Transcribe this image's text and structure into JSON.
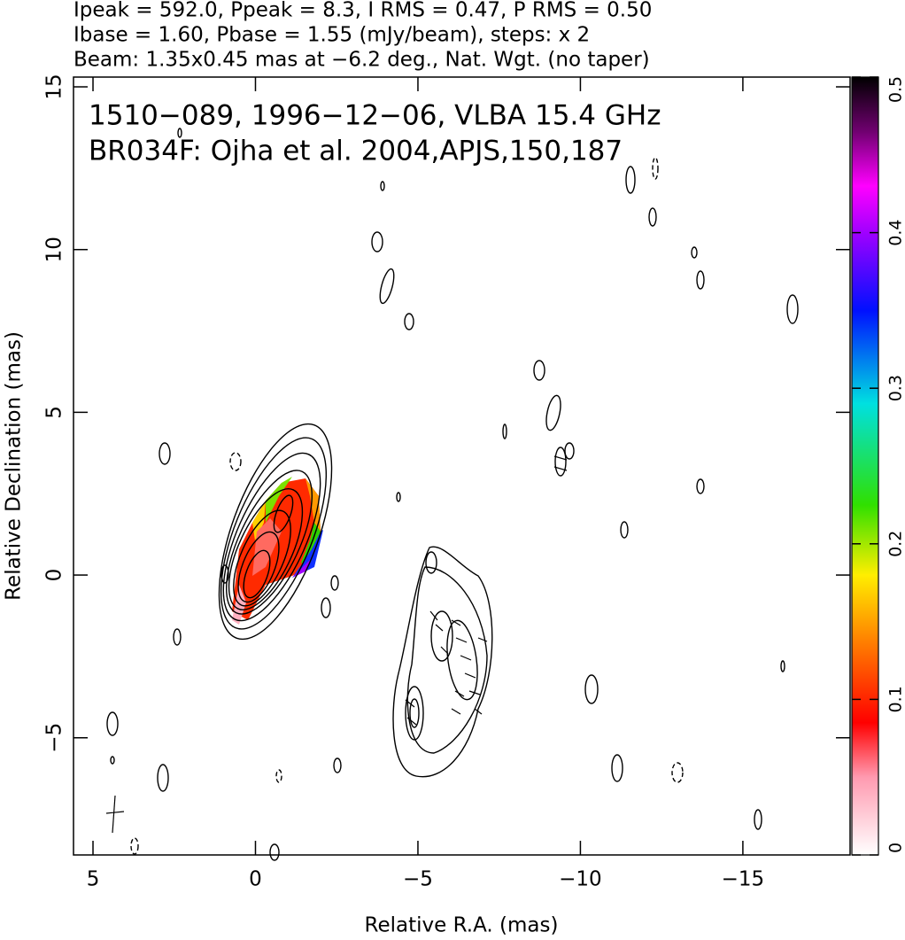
{
  "chart_data": {
    "type": "contour",
    "header": [
      "Ipeak = 592.0, Ppeak = 8.3, I RMS = 0.47, P RMS = 0.50",
      "Ibase = 1.60, Pbase = 1.55 (mJy/beam), steps: x 2",
      "Beam: 1.35x0.45 mas at −6.2 deg., Nat. Wgt. (no taper)"
    ],
    "annotations": [
      "1510−089, 1996−12−06, VLBA 15.4 GHz",
      "BR034F: Ojha et al. 2004,APJS,150,187"
    ],
    "xlabel": "Relative R.A. (mas)",
    "ylabel": "Relative Declination (mas)",
    "xlim": [
      5.6,
      -18.3
    ],
    "ylim": [
      -8.6,
      15.3
    ],
    "xticks": [
      5,
      0,
      {
        "value": -5,
        "label": "−5"
      },
      {
        "value": -10,
        "label": "−10"
      },
      {
        "value": -15,
        "label": "−15"
      }
    ],
    "yticks": [
      {
        "value": -5,
        "label": "−5"
      },
      0,
      5,
      10,
      15
    ],
    "colorbar": {
      "lim": [
        0,
        0.5
      ],
      "ticks": [
        0,
        0.1,
        0.2,
        0.3,
        0.4,
        0.5
      ]
    }
  }
}
